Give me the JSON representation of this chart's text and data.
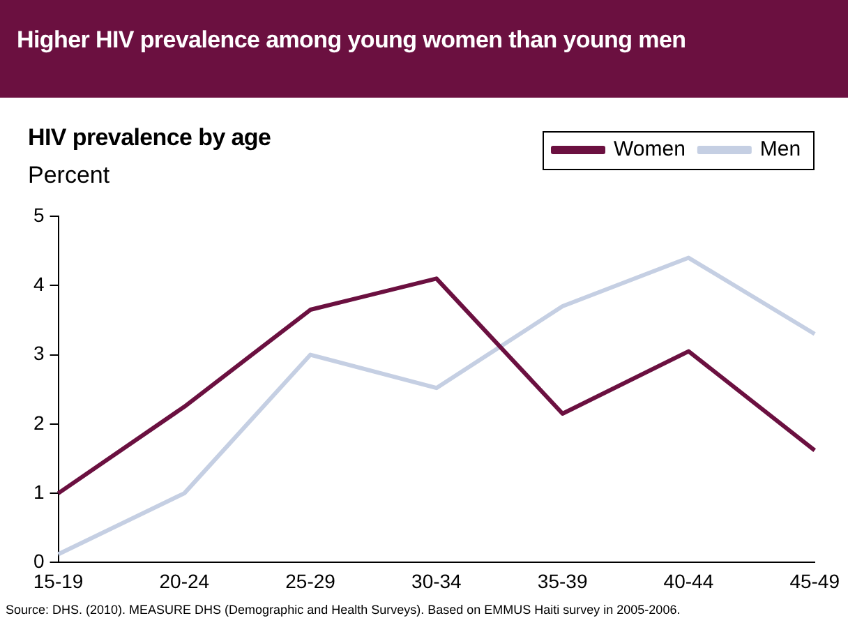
{
  "chart_data": {
    "type": "line",
    "title": "Higher HIV prevalence among young women than young men",
    "subtitle": "HIV prevalence by age",
    "ylabel": "Percent",
    "categories": [
      "15-19",
      "20-24",
      "25-29",
      "30-34",
      "35-39",
      "40-44",
      "45-49"
    ],
    "series": [
      {
        "name": "Women",
        "color": "#6b1040",
        "values": [
          1.0,
          2.25,
          3.65,
          4.1,
          2.15,
          3.05,
          1.62
        ]
      },
      {
        "name": "Men",
        "color": "#c5cfe3",
        "values": [
          0.12,
          1.0,
          3.0,
          2.52,
          3.7,
          4.4,
          3.3
        ]
      }
    ],
    "ylim": [
      0,
      5
    ],
    "yticks": [
      0,
      1,
      2,
      3,
      4,
      5
    ],
    "grid": false,
    "legend": "top right",
    "annotations": [
      "Source: DHS. (2010). MEASURE DHS (Demographic and Health Surveys). Based on EMMUS Haiti survey in 2005-2006."
    ]
  }
}
